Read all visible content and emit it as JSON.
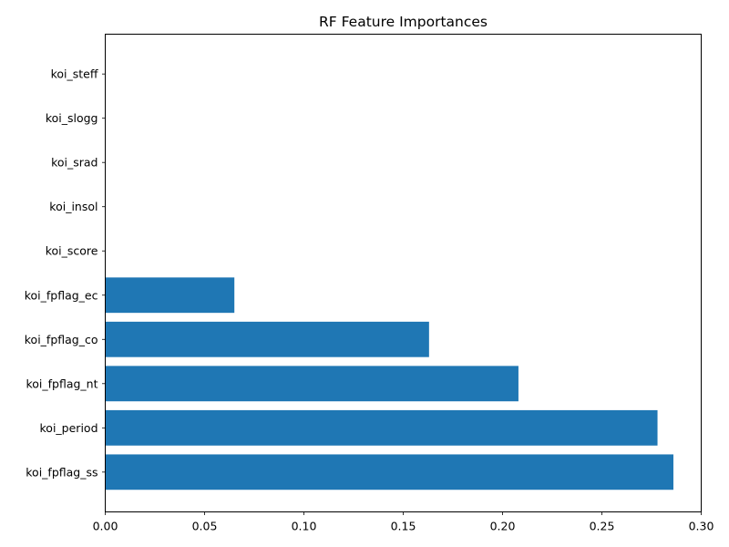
{
  "chart_data": {
    "type": "bar",
    "orientation": "horizontal",
    "title": "RF Feature Importances",
    "xlabel": "",
    "ylabel": "",
    "xlim": [
      0,
      0.3
    ],
    "xticks": [
      "0.00",
      "0.05",
      "0.10",
      "0.15",
      "0.20",
      "0.25",
      "0.30"
    ],
    "categories": [
      "koi_fpflag_ss",
      "koi_period",
      "koi_fpflag_nt",
      "koi_fpflag_co",
      "koi_fpflag_ec",
      "koi_score",
      "koi_insol",
      "koi_srad",
      "koi_slogg",
      "koi_steff"
    ],
    "values": [
      0.286,
      0.278,
      0.208,
      0.163,
      0.065,
      0,
      0,
      0,
      0,
      0
    ],
    "bar_color": "#1f77b4",
    "grid": false
  }
}
